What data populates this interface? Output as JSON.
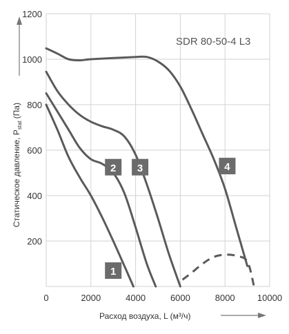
{
  "chart_data": {
    "type": "line",
    "model_label": "SDR 80-50-4 L3",
    "xlabel": "Расход воздуха, L (м³/ч)",
    "ylabel": "Статическое давление, P",
    "ylabel_subscript": "stat",
    "ylabel_unit": "(Па)",
    "xlim": [
      0,
      10000
    ],
    "ylim": [
      0,
      1200
    ],
    "xticks": [
      0,
      2000,
      4000,
      6000,
      8000,
      10000
    ],
    "yticks": [
      200,
      400,
      600,
      800,
      1000,
      1200
    ],
    "xtick_labels": [
      "0",
      "2000",
      "4000",
      "6000",
      "8000",
      "10000"
    ],
    "ytick_labels": [
      "200",
      "400",
      "600",
      "800",
      "1000",
      "1200"
    ],
    "grid": true,
    "series": [
      {
        "name": "1",
        "label_at": [
          3000,
          70
        ],
        "x": [
          0,
          500,
          1000,
          1500,
          2000,
          2500,
          3000,
          3500,
          3900
        ],
        "y": [
          800,
          690,
          570,
          480,
          400,
          305,
          200,
          90,
          0
        ]
      },
      {
        "name": "2",
        "label_at": [
          3000,
          525
        ],
        "x": [
          0,
          500,
          1000,
          1500,
          2000,
          2500,
          3000,
          3500,
          4000,
          4500,
          4900
        ],
        "y": [
          850,
          770,
          690,
          610,
          560,
          540,
          500,
          410,
          260,
          100,
          0
        ]
      },
      {
        "name": "3",
        "label_at": [
          4200,
          525
        ],
        "x": [
          0,
          500,
          1000,
          1500,
          2000,
          2500,
          3000,
          3500,
          4000,
          4500,
          5000,
          5500,
          6000
        ],
        "y": [
          945,
          860,
          800,
          755,
          725,
          705,
          690,
          660,
          580,
          450,
          300,
          140,
          0
        ]
      },
      {
        "name": "4",
        "label_at": [
          8100,
          530
        ],
        "x": [
          0,
          500,
          1000,
          1500,
          2000,
          3000,
          4000,
          4500,
          5000,
          5500,
          6000,
          6500,
          7000,
          7500,
          8000,
          8500,
          9000
        ],
        "y": [
          1048,
          1025,
          1000,
          995,
          1000,
          1005,
          1010,
          1010,
          990,
          950,
          880,
          780,
          670,
          560,
          430,
          260,
          90
        ]
      },
      {
        "name": "4 (dashed)",
        "dashed": true,
        "x": [
          6100,
          6500,
          7000,
          7500,
          8000,
          8500,
          9000,
          9300
        ],
        "y": [
          30,
          60,
          100,
          130,
          140,
          135,
          110,
          0
        ]
      }
    ]
  }
}
